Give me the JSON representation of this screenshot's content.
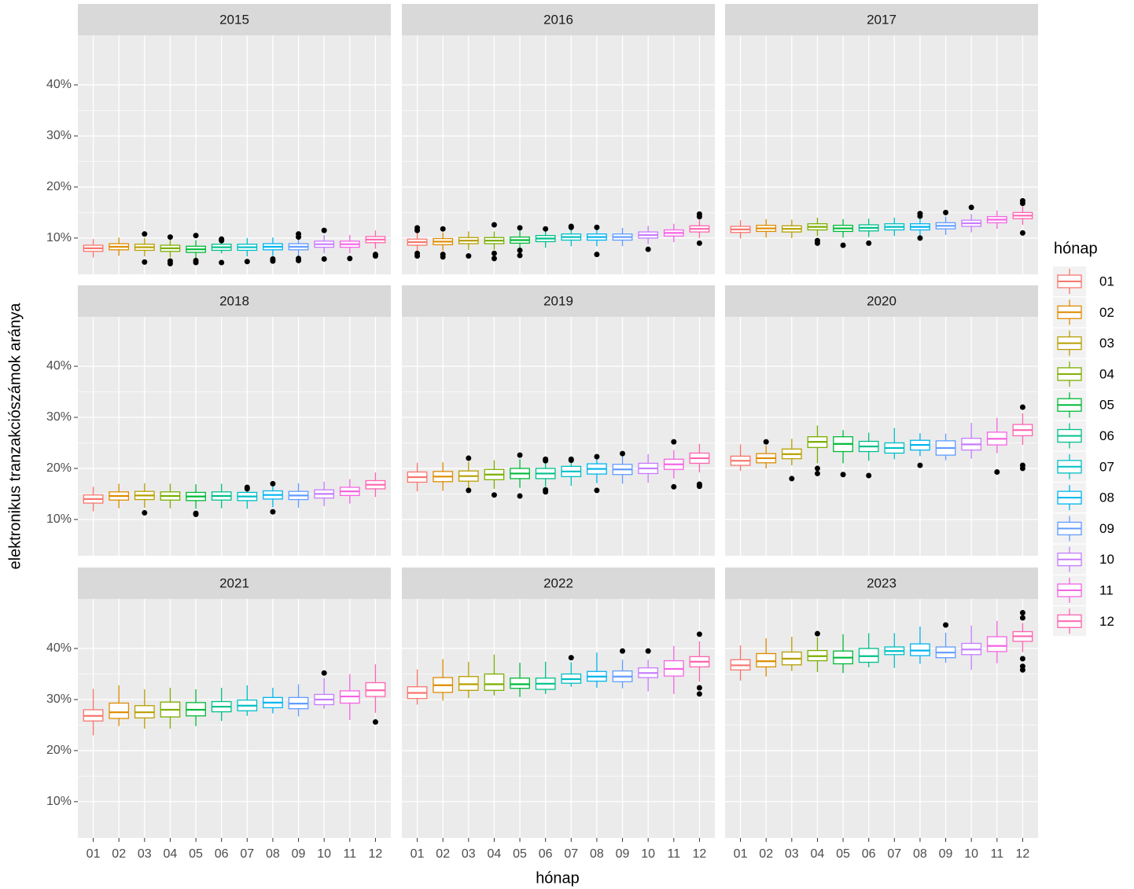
{
  "chart_data": {
    "type": "boxplot",
    "ylabel": "elektronikus tranzakciószámok aránya",
    "xlabel": "hónap",
    "legend_title": "hónap",
    "categories": [
      "01",
      "02",
      "03",
      "04",
      "05",
      "06",
      "07",
      "08",
      "09",
      "10",
      "11",
      "12"
    ],
    "colors": [
      "#F8766D",
      "#DE8C00",
      "#B79F00",
      "#7CAE00",
      "#00BA38",
      "#00C08B",
      "#00BFC4",
      "#00B4F0",
      "#619CFF",
      "#C77CFF",
      "#F564E3",
      "#FF64B0"
    ],
    "ylim": [
      2.9,
      49.7
    ],
    "yticks": [
      {
        "value": 10,
        "label": "10%"
      },
      {
        "value": 20,
        "label": "20%"
      },
      {
        "value": 30,
        "label": "30%"
      },
      {
        "value": 40,
        "label": "40%"
      }
    ],
    "grid": true,
    "legend": "right",
    "facets": [
      {
        "title": "2015",
        "min": [
          6.2,
          6.5,
          6.4,
          6.2,
          6,
          7,
          6.4,
          6.5,
          6.5,
          7,
          7,
          7.9
        ],
        "q1": [
          7.4,
          7.7,
          7.6,
          7.4,
          7.2,
          7.6,
          7.6,
          7.7,
          7.7,
          8.2,
          8.2,
          9.1
        ],
        "median": [
          8,
          8.3,
          8.2,
          8,
          7.8,
          8.2,
          8.2,
          8.3,
          8.3,
          8.8,
          8.8,
          9.7
        ],
        "q3": [
          8.6,
          8.9,
          8.8,
          8.6,
          8.4,
          8.8,
          8.8,
          8.9,
          8.9,
          9.4,
          9.4,
          10.3
        ],
        "max": [
          9.8,
          10.1,
          10,
          9.8,
          9.6,
          9.2,
          10,
          10.1,
          10.1,
          10.6,
          10.6,
          11.5
        ],
        "outliers": [
          [],
          [],
          [
            10.8,
            5.3
          ],
          [
            10.2,
            5,
            5.5
          ],
          [
            10.5,
            5.2,
            5.6
          ],
          [
            9.8,
            9.5,
            5.2
          ],
          [
            5.4
          ],
          [
            5.5,
            5.9
          ],
          [
            10.8,
            10.2,
            5.6,
            6
          ],
          [
            11.5,
            5.9
          ],
          [
            6
          ],
          [
            6.5,
            6.8
          ]
        ]
      },
      {
        "title": "2016",
        "min": [
          7.4,
          7.5,
          7.7,
          7.7,
          7.8,
          8.1,
          8.4,
          8.4,
          8.4,
          8.8,
          9.2,
          10
        ],
        "q1": [
          8.6,
          8.7,
          8.9,
          8.9,
          9,
          9.3,
          9.6,
          9.6,
          9.6,
          10,
          10.4,
          11.2
        ],
        "median": [
          9.2,
          9.3,
          9.5,
          9.5,
          9.6,
          9.9,
          10.2,
          10.2,
          10.2,
          10.6,
          11,
          11.8
        ],
        "q3": [
          9.8,
          9.9,
          10.1,
          10.1,
          10.2,
          10.5,
          10.8,
          10.8,
          10.8,
          11.2,
          11.6,
          12.4
        ],
        "max": [
          11,
          11.1,
          11.3,
          11.3,
          11.4,
          11.7,
          12,
          12,
          12,
          12.4,
          12.8,
          13.6
        ],
        "outliers": [
          [
            12,
            11.5,
            6.5,
            7
          ],
          [
            11.8,
            6.3,
            6.8
          ],
          [
            6.5
          ],
          [
            12.6,
            6,
            7
          ],
          [
            12,
            7.6,
            6.6
          ],
          [
            11.8
          ],
          [
            12.3,
            12.1
          ],
          [
            12.1,
            6.8
          ],
          [],
          [
            7.8
          ],
          [],
          [
            14.7,
            14.2,
            9
          ]
        ]
      },
      {
        "title": "2017",
        "min": [
          9.9,
          10.1,
          10,
          10.4,
          10.1,
          10.2,
          10.4,
          10.4,
          10.6,
          11.1,
          11.8,
          12.6
        ],
        "q1": [
          11.1,
          11.3,
          11.2,
          11.6,
          11.3,
          11.4,
          11.6,
          11.6,
          11.8,
          12.3,
          13,
          13.8
        ],
        "median": [
          11.7,
          11.9,
          11.8,
          12.2,
          11.9,
          12,
          12.2,
          12.2,
          12.4,
          12.9,
          13.6,
          14.4
        ],
        "q3": [
          12.3,
          12.5,
          12.4,
          12.8,
          12.5,
          12.6,
          12.8,
          12.8,
          13,
          13.5,
          14.2,
          15
        ],
        "max": [
          13.5,
          13.7,
          13.6,
          14,
          13.7,
          13.8,
          14,
          14,
          14.2,
          14.7,
          15.4,
          16.2
        ],
        "outliers": [
          [],
          [],
          [],
          [
            9.5,
            9
          ],
          [
            8.6
          ],
          [
            9
          ],
          [],
          [
            14.8,
            14.3,
            10
          ],
          [
            15
          ],
          [
            16
          ],
          [],
          [
            17.3,
            16.8,
            11
          ]
        ]
      },
      {
        "title": "2018",
        "min": [
          11.6,
          12.2,
          12.3,
          12.2,
          12.1,
          12.2,
          12.1,
          12.4,
          12.3,
          12.6,
          13.1,
          14.4
        ],
        "q1": [
          13.2,
          13.8,
          13.9,
          13.8,
          13.7,
          13.8,
          13.7,
          14,
          13.9,
          14.2,
          14.7,
          16
        ],
        "median": [
          14,
          14.6,
          14.7,
          14.6,
          14.5,
          14.6,
          14.5,
          14.8,
          14.7,
          15,
          15.5,
          16.8
        ],
        "q3": [
          14.8,
          15.4,
          15.5,
          15.4,
          15.3,
          15.4,
          15.3,
          15.6,
          15.5,
          15.8,
          16.3,
          17.6
        ],
        "max": [
          16.4,
          17,
          17.1,
          17,
          16.9,
          17,
          15.9,
          16.6,
          17.1,
          17.4,
          17.9,
          19.2
        ],
        "outliers": [
          [],
          [],
          [
            11.3
          ],
          [],
          [
            11.2,
            11
          ],
          [],
          [
            16.3,
            16
          ],
          [
            17,
            11.5
          ],
          [],
          [],
          [],
          []
        ]
      },
      {
        "title": "2019",
        "min": [
          15.5,
          15.6,
          16.2,
          16,
          16.2,
          16.4,
          16.6,
          17.1,
          17,
          17.2,
          18,
          19.2
        ],
        "q1": [
          17.3,
          17.4,
          17.5,
          17.8,
          18,
          18,
          18.4,
          18.9,
          18.8,
          19,
          19.8,
          21
        ],
        "median": [
          18.3,
          18.4,
          18.5,
          18.8,
          19,
          19,
          19.4,
          19.9,
          19.8,
          20,
          20.8,
          22
        ],
        "q3": [
          19.3,
          19.4,
          19.5,
          19.8,
          20,
          20,
          20.4,
          20.9,
          20.8,
          21,
          21.8,
          23
        ],
        "max": [
          21.1,
          21.2,
          21.3,
          21.6,
          21.8,
          21.2,
          21.2,
          21.9,
          22.6,
          22.8,
          23.6,
          24.8
        ],
        "outliers": [
          [],
          [],
          [
            22,
            15.7
          ],
          [
            14.8
          ],
          [
            22.6,
            14.6
          ],
          [
            21.8,
            21.5,
            15.8,
            15.4
          ],
          [
            21.8,
            21.6
          ],
          [
            22.3,
            15.7
          ],
          [
            22.9
          ],
          [],
          [
            25.2,
            16.4
          ],
          [
            16.9,
            16.5
          ]
        ]
      },
      {
        "title": "2020",
        "min": [
          19.5,
          20,
          20.6,
          21,
          21,
          21.5,
          21.8,
          22.4,
          21.6,
          21.9,
          23,
          24.6
        ],
        "q1": [
          20.6,
          21.1,
          21.9,
          24.1,
          23.3,
          23.3,
          23,
          23.6,
          22.6,
          23.6,
          24.6,
          26.4
        ],
        "median": [
          21.5,
          22,
          22.8,
          25.2,
          24.8,
          24.3,
          24,
          24.6,
          24,
          24.7,
          25.8,
          27.5
        ],
        "q3": [
          22.4,
          22.9,
          23.8,
          26.2,
          26.2,
          25.3,
          25,
          25.5,
          25.4,
          25.9,
          27.1,
          28.6
        ],
        "max": [
          24.7,
          24.5,
          25.8,
          28.4,
          27.5,
          27,
          27.9,
          26.9,
          26.8,
          28.9,
          29.9,
          30.8
        ],
        "outliers": [
          [],
          [
            25.2
          ],
          [
            18
          ],
          [
            20,
            19
          ],
          [
            18.8
          ],
          [
            18.6
          ],
          [],
          [
            20.6
          ],
          [],
          [],
          [
            19.3
          ],
          [
            32,
            20.6,
            20
          ]
        ]
      },
      {
        "title": "2021",
        "min": [
          23,
          24.8,
          24.3,
          24.3,
          24.8,
          25.8,
          26.8,
          27.3,
          26.7,
          28.2,
          26,
          27.4
        ],
        "q1": [
          25.8,
          26.3,
          26.4,
          26.6,
          26.8,
          27.6,
          27.8,
          28.4,
          28.2,
          29,
          29.3,
          30.6
        ],
        "median": [
          26.8,
          27.5,
          27.5,
          28,
          28,
          28.6,
          28.8,
          29.4,
          29.2,
          30,
          30.6,
          31.8
        ],
        "q3": [
          28,
          29.3,
          28.8,
          29.5,
          29.4,
          29.6,
          29.9,
          30.4,
          30.4,
          31,
          31.7,
          33.3
        ],
        "max": [
          32.1,
          32.8,
          32,
          32.3,
          32,
          32.3,
          32.8,
          32.3,
          33,
          34.2,
          35,
          36.9
        ],
        "outliers": [
          [],
          [],
          [],
          [],
          [],
          [],
          [],
          [],
          [],
          [
            35.2
          ],
          [],
          [
            25.6
          ]
        ]
      },
      {
        "title": "2022",
        "min": [
          29,
          29.8,
          30.3,
          30.8,
          30.5,
          31.1,
          32.5,
          32.3,
          32.2,
          31.6,
          31.1,
          33.5
        ],
        "q1": [
          30.2,
          31.4,
          31.8,
          31.8,
          32.2,
          32,
          33.2,
          33.6,
          33.5,
          34.3,
          34.6,
          36.4
        ],
        "median": [
          31.3,
          32.8,
          33,
          33,
          33,
          33.1,
          34,
          34.5,
          34.5,
          35.2,
          36,
          37.4
        ],
        "q3": [
          32.5,
          34.3,
          34.5,
          35,
          34.2,
          34.2,
          35,
          35.5,
          35.6,
          36.2,
          37.6,
          38.4
        ],
        "max": [
          35.9,
          37.9,
          37.4,
          38.8,
          37.2,
          37.4,
          37.3,
          39.2,
          37.8,
          37.8,
          40.5,
          41.4
        ],
        "outliers": [
          [],
          [],
          [],
          [],
          [],
          [],
          [
            38.2
          ],
          [],
          [
            39.5
          ],
          [
            39.5
          ],
          [],
          [
            42.8,
            32.3,
            31.1
          ]
        ]
      },
      {
        "title": "2023",
        "min": [
          33.7,
          34.5,
          35.6,
          35.4,
          35.2,
          36.3,
          36.2,
          37,
          37.2,
          35.8,
          37.1,
          39.3
        ],
        "q1": [
          35.8,
          36.4,
          36.8,
          37.6,
          37,
          37.3,
          38.8,
          38.6,
          38.2,
          38.8,
          39.4,
          41.4
        ],
        "median": [
          36.7,
          37.5,
          38,
          38.5,
          38.2,
          38.5,
          39.5,
          39.6,
          39.2,
          39.8,
          40.5,
          42.4
        ],
        "q3": [
          37.8,
          39,
          39.3,
          39.6,
          39.5,
          40,
          40.3,
          40.9,
          40.3,
          41,
          42.3,
          43.3
        ],
        "max": [
          40.6,
          42,
          42.3,
          42.2,
          42.8,
          43,
          43,
          44.3,
          43.1,
          44.5,
          45.4,
          45
        ],
        "outliers": [
          [],
          [],
          [],
          [
            42.9
          ],
          [],
          [],
          [],
          [],
          [
            44.6
          ],
          [],
          [],
          [
            47,
            46,
            38,
            36.5,
            35.8
          ]
        ]
      }
    ]
  }
}
